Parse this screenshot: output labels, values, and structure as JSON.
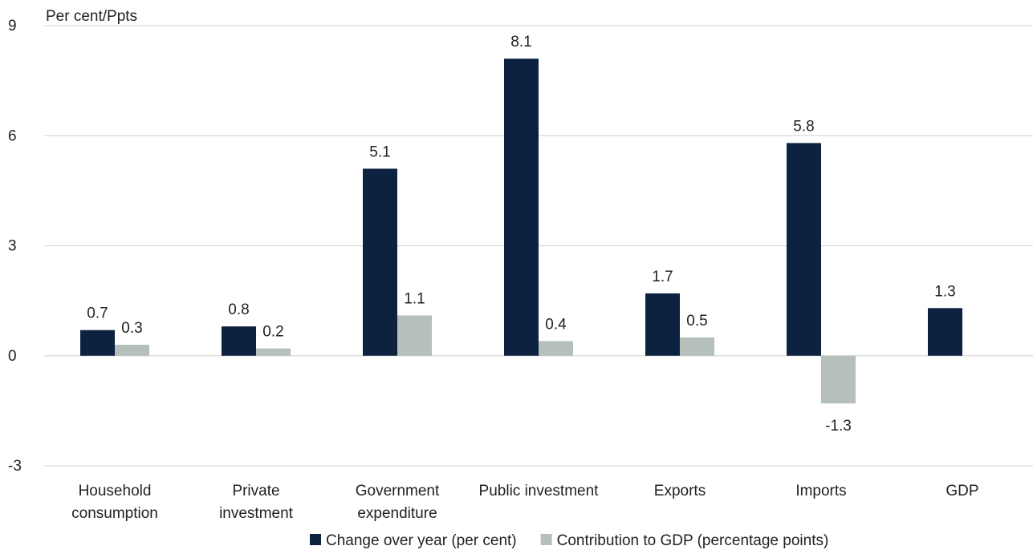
{
  "chart_data": {
    "type": "bar",
    "ylabel": "Per cent/Ppts",
    "ylim": [
      -3,
      9
    ],
    "yticks": [
      -3,
      0,
      3,
      6,
      9
    ],
    "grid": true,
    "legend_position": "bottom",
    "categories": [
      [
        "Household",
        "consumption"
      ],
      [
        "Private",
        "investment"
      ],
      [
        "Government",
        "expenditure"
      ],
      [
        "Public investment"
      ],
      [
        "Exports"
      ],
      [
        "Imports"
      ],
      [
        "GDP"
      ]
    ],
    "series": [
      {
        "name": "Change over year (per cent)",
        "color": "#0d2240",
        "values": [
          0.7,
          0.8,
          5.1,
          8.1,
          1.7,
          5.8,
          1.3
        ],
        "labels": [
          "0.7",
          "0.8",
          "5.1",
          "8.1",
          "1.7",
          "5.8",
          "1.3"
        ]
      },
      {
        "name": "Contribution to GDP (percentage points)",
        "color": "#b4c0b9",
        "values": [
          0.3,
          0.2,
          1.1,
          0.4,
          0.5,
          -1.3,
          null
        ],
        "labels": [
          "0.3",
          "0.2",
          "1.1",
          "0.4",
          "0.5",
          "-1.3",
          null
        ]
      }
    ]
  }
}
